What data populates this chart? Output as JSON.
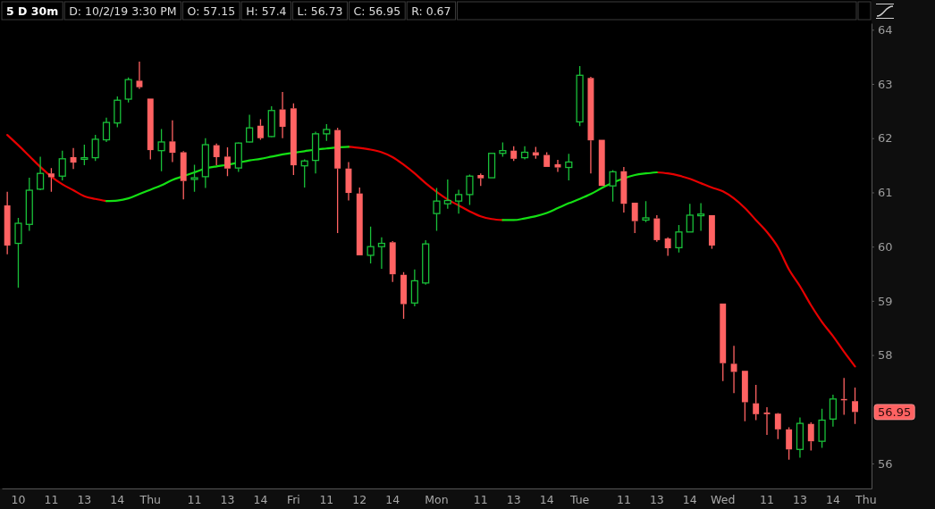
{
  "chart_data": {
    "type": "candlestick",
    "title": "5 D 30m",
    "annotations": [
      "D: 10/2/19 3:30 PM",
      "O: 57.15",
      "H: 57.4",
      "L: 56.73",
      "C: 56.95",
      "R: 0.67",
      "56.95"
    ],
    "categories": [
      null,
      "10",
      null,
      null,
      "11",
      null,
      null,
      "13",
      null,
      null,
      "14",
      null,
      null,
      "Thu",
      null,
      null,
      null,
      "11",
      null,
      null,
      "13",
      null,
      null,
      "14",
      null,
      null,
      "Fri",
      null,
      null,
      "11",
      null,
      null,
      "12",
      null,
      null,
      "14",
      null,
      null,
      null,
      "Mon",
      null,
      null,
      null,
      "11",
      null,
      null,
      "13",
      null,
      null,
      "14",
      null,
      null,
      "Tue",
      null,
      null,
      null,
      "11",
      null,
      null,
      "13",
      null,
      null,
      "14",
      null,
      null,
      "Wed",
      null,
      null,
      null,
      "11",
      null,
      null,
      "13",
      null,
      null,
      "14",
      null,
      null,
      "Thu"
    ],
    "ylim": [
      55.54,
      64.12
    ],
    "yticks": [
      56,
      58,
      59,
      60,
      61,
      62,
      63,
      64
    ],
    "series": [
      {
        "ohlc": [
          [
            60.76,
            61.01,
            59.86,
            60.02
          ],
          [
            60.06,
            60.53,
            59.24,
            60.43
          ],
          [
            60.41,
            61.27,
            60.29,
            61.04
          ],
          [
            61.06,
            61.66,
            61.04,
            61.35
          ],
          [
            61.35,
            61.45,
            61.01,
            61.28
          ],
          [
            61.3,
            61.77,
            61.22,
            61.62
          ],
          [
            61.65,
            61.82,
            61.43,
            61.55
          ],
          [
            61.61,
            61.88,
            61.5,
            61.64
          ],
          [
            61.64,
            62.06,
            61.58,
            61.98
          ],
          [
            61.97,
            62.38,
            61.93,
            62.29
          ],
          [
            62.28,
            62.77,
            62.2,
            62.7
          ],
          [
            62.72,
            63.12,
            62.66,
            63.08
          ],
          [
            63.06,
            63.41,
            62.91,
            62.94
          ],
          [
            62.73,
            62.73,
            61.61,
            61.78
          ],
          [
            61.77,
            62.17,
            61.39,
            61.93
          ],
          [
            61.94,
            62.33,
            61.56,
            61.73
          ],
          [
            61.74,
            61.76,
            60.87,
            61.21
          ],
          [
            61.24,
            61.51,
            61.01,
            61.27
          ],
          [
            61.29,
            62.0,
            61.08,
            61.88
          ],
          [
            61.87,
            61.9,
            61.5,
            61.65
          ],
          [
            61.66,
            61.83,
            61.3,
            61.44
          ],
          [
            61.45,
            61.92,
            61.38,
            61.91
          ],
          [
            61.93,
            62.43,
            61.92,
            62.19
          ],
          [
            62.23,
            62.35,
            61.97,
            62.0
          ],
          [
            62.03,
            62.59,
            62.02,
            62.51
          ],
          [
            62.53,
            62.85,
            62.0,
            62.21
          ],
          [
            62.55,
            62.64,
            61.32,
            61.5
          ],
          [
            61.49,
            61.61,
            61.09,
            61.58
          ],
          [
            61.59,
            62.12,
            61.35,
            62.08
          ],
          [
            62.08,
            62.26,
            61.95,
            62.16
          ],
          [
            62.15,
            62.19,
            60.25,
            61.44
          ],
          [
            61.44,
            61.56,
            60.85,
            60.99
          ],
          [
            60.98,
            61.09,
            59.84,
            59.84
          ],
          [
            59.84,
            60.37,
            59.69,
            60.0
          ],
          [
            60.0,
            60.17,
            59.59,
            60.06
          ],
          [
            60.08,
            60.1,
            59.35,
            59.49
          ],
          [
            59.48,
            59.53,
            58.67,
            58.94
          ],
          [
            58.96,
            59.58,
            58.9,
            59.37
          ],
          [
            59.33,
            60.12,
            59.3,
            60.05
          ],
          [
            60.61,
            61.08,
            60.29,
            60.84
          ],
          [
            60.79,
            61.24,
            60.7,
            60.85
          ],
          [
            60.84,
            61.05,
            60.61,
            60.96
          ],
          [
            60.96,
            61.33,
            60.77,
            61.3
          ],
          [
            61.32,
            61.35,
            61.12,
            61.26
          ],
          [
            61.27,
            61.72,
            61.27,
            61.72
          ],
          [
            61.72,
            61.92,
            61.66,
            61.77
          ],
          [
            61.77,
            61.85,
            61.58,
            61.62
          ],
          [
            61.64,
            61.85,
            61.61,
            61.74
          ],
          [
            61.74,
            61.84,
            61.62,
            61.68
          ],
          [
            61.69,
            61.74,
            61.47,
            61.47
          ],
          [
            61.52,
            61.6,
            61.38,
            61.46
          ],
          [
            61.46,
            61.71,
            61.22,
            61.56
          ],
          [
            62.3,
            63.33,
            62.22,
            63.16
          ],
          [
            63.11,
            63.13,
            61.35,
            61.96
          ],
          [
            61.97,
            61.97,
            61.12,
            61.12
          ],
          [
            61.12,
            61.41,
            60.83,
            61.38
          ],
          [
            61.39,
            61.47,
            60.63,
            60.79
          ],
          [
            60.81,
            60.81,
            60.25,
            60.47
          ],
          [
            60.49,
            60.84,
            60.45,
            60.53
          ],
          [
            60.52,
            60.58,
            60.09,
            60.12
          ],
          [
            60.15,
            60.17,
            59.83,
            59.97
          ],
          [
            59.98,
            60.4,
            59.89,
            60.27
          ],
          [
            60.27,
            60.79,
            60.27,
            60.58
          ],
          [
            60.57,
            60.8,
            60.29,
            60.6
          ],
          [
            60.58,
            60.58,
            59.96,
            60.02
          ],
          [
            58.95,
            58.95,
            57.52,
            57.85
          ],
          [
            57.84,
            58.17,
            57.3,
            57.69
          ],
          [
            57.71,
            57.71,
            56.78,
            57.13
          ],
          [
            57.11,
            57.45,
            56.8,
            56.91
          ],
          [
            56.94,
            57.04,
            56.53,
            56.91
          ],
          [
            56.92,
            56.93,
            56.45,
            56.63
          ],
          [
            56.63,
            56.67,
            56.07,
            56.26
          ],
          [
            56.26,
            56.85,
            56.11,
            56.74
          ],
          [
            56.73,
            56.76,
            56.24,
            56.41
          ],
          [
            56.41,
            57.01,
            56.29,
            56.8
          ],
          [
            56.82,
            57.27,
            56.68,
            57.19
          ],
          [
            57.19,
            57.58,
            56.9,
            57.18
          ],
          [
            57.15,
            57.4,
            56.73,
            56.95
          ],
          null
        ],
        "colors": [
          "#ff6262",
          "#19c039",
          "#19c039",
          "#19c039",
          "#ff6262",
          "#19c039",
          "#ff6262",
          "#19c039",
          "#19c039",
          "#19c039",
          "#19c039",
          "#19c039",
          "#ff6262",
          "#ff6262",
          "#19c039",
          "#ff6262",
          "#ff6262",
          "#19c039",
          "#19c039",
          "#ff6262",
          "#ff6262",
          "#19c039",
          "#19c039",
          "#ff6262",
          "#19c039",
          "#ff6262",
          "#ff6262",
          "#19c039",
          "#19c039",
          "#19c039",
          "#ff6262",
          "#ff6262",
          "#ff6262",
          "#19c039",
          "#19c039",
          "#ff6262",
          "#ff6262",
          "#19c039",
          "#19c039",
          "#19c039",
          "#19c039",
          "#19c039",
          "#19c039",
          "#ff6262",
          "#19c039",
          "#19c039",
          "#ff6262",
          "#19c039",
          "#ff6262",
          "#ff6262",
          "#ff6262",
          "#19c039",
          "#19c039",
          "#ff6262",
          "#ff6262",
          "#19c039",
          "#ff6262",
          "#ff6262",
          "#19c039",
          "#ff6262",
          "#ff6262",
          "#19c039",
          "#19c039",
          "#19c039",
          "#ff6262",
          "#ff6262",
          "#ff6262",
          "#ff6262",
          "#ff6262",
          "#ff6262",
          "#ff6262",
          "#ff6262",
          "#19c039",
          "#ff6262",
          "#19c039",
          "#19c039",
          "#ff6262",
          "#ff6262",
          null
        ]
      },
      {
        "type": "line",
        "color": "#e60000",
        "values": [
          62.06,
          61.87,
          61.67,
          61.47,
          61.29,
          61.15,
          61.04,
          60.93,
          60.88,
          60.84,
          null,
          null,
          null,
          null,
          null,
          null,
          null,
          null,
          null,
          null,
          null,
          null,
          null,
          null,
          null,
          null,
          null,
          null,
          null,
          null,
          null,
          61.84,
          61.82,
          61.79,
          61.74,
          61.65,
          61.51,
          61.35,
          61.17,
          61.01,
          60.87,
          60.76,
          60.65,
          60.56,
          60.51,
          60.49,
          null,
          null,
          null,
          null,
          null,
          null,
          null,
          null,
          null,
          null,
          null,
          null,
          null,
          61.37,
          61.35,
          61.31,
          61.25,
          61.17,
          61.09,
          61.02,
          60.89,
          60.71,
          60.49,
          60.27,
          59.99,
          59.58,
          59.27,
          58.92,
          58.61,
          58.35,
          58.06,
          57.79,
          null
        ]
      },
      {
        "type": "line",
        "color": "#14e014",
        "values": [
          null,
          null,
          null,
          null,
          null,
          null,
          null,
          null,
          null,
          60.84,
          60.85,
          60.89,
          60.97,
          61.05,
          61.13,
          61.23,
          61.3,
          61.37,
          61.44,
          61.48,
          61.51,
          61.55,
          61.59,
          61.62,
          61.66,
          61.7,
          61.73,
          61.76,
          61.79,
          61.81,
          61.83,
          61.84,
          null,
          null,
          null,
          null,
          null,
          null,
          null,
          null,
          null,
          null,
          null,
          null,
          null,
          60.49,
          60.49,
          60.52,
          60.56,
          60.62,
          60.71,
          60.8,
          60.88,
          60.97,
          61.08,
          61.18,
          61.26,
          61.32,
          61.35,
          61.37,
          null,
          null,
          null,
          null,
          null,
          null,
          null,
          null,
          null,
          null,
          null,
          null,
          null,
          null,
          null,
          null,
          null,
          null,
          null
        ]
      }
    ]
  }
}
